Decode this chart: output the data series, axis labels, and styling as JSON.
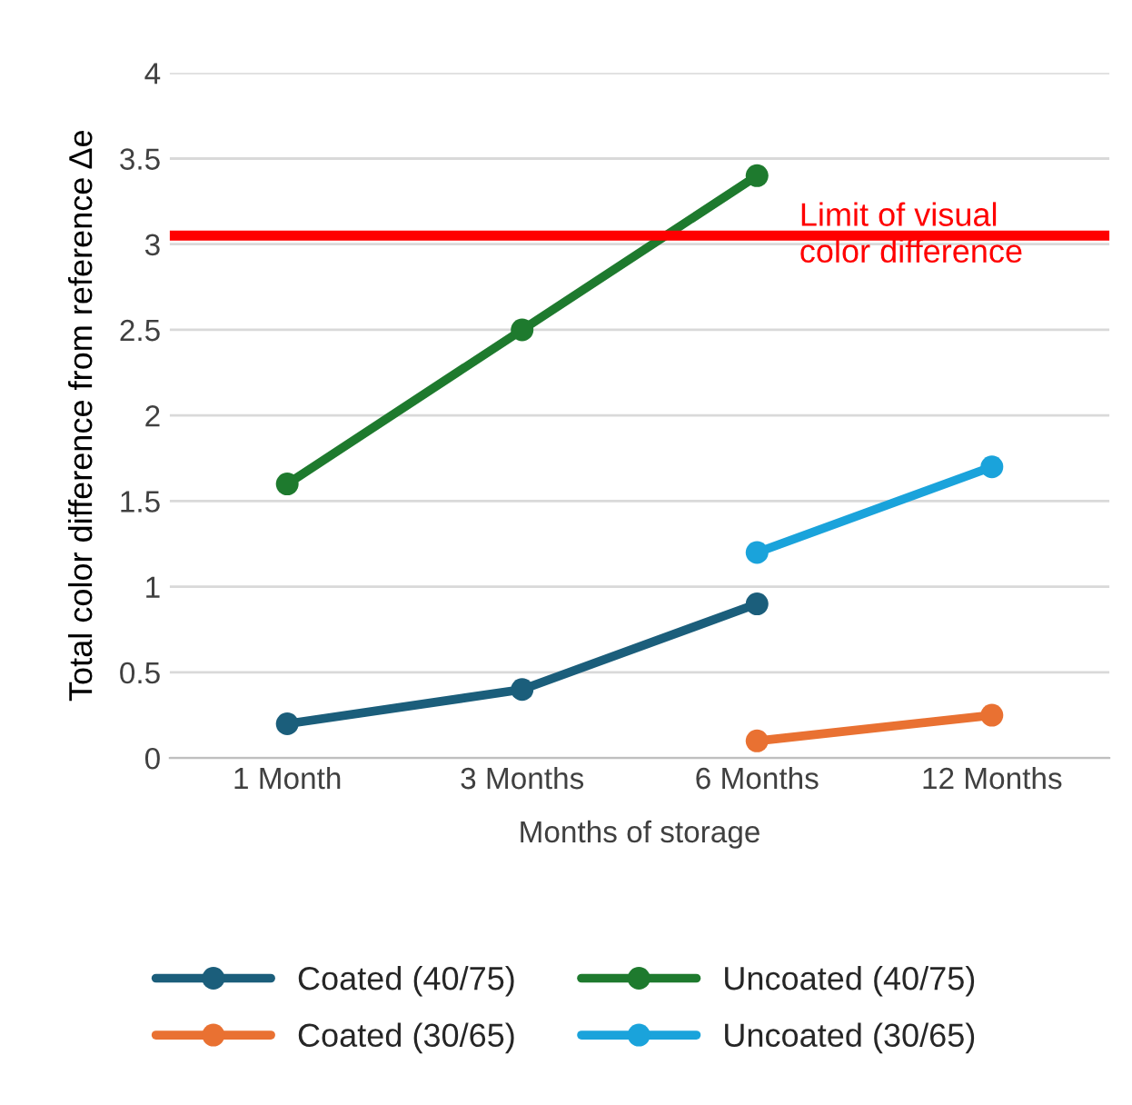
{
  "chart_data": {
    "type": "line",
    "xlabel": "Months of storage",
    "ylabel": "Total color difference from reference Δe",
    "categories": [
      "1 Month",
      "3 Months",
      "6 Months",
      "12 Months"
    ],
    "series": [
      {
        "name": "Coated (40/75)",
        "color": "#1b5e7b",
        "values": [
          0.2,
          0.4,
          0.9,
          null
        ]
      },
      {
        "name": "Coated (30/65)",
        "color": "#e97132",
        "values": [
          null,
          null,
          0.1,
          0.25
        ]
      },
      {
        "name": "Uncoated (40/75)",
        "color": "#1e7a2e",
        "values": [
          1.6,
          2.5,
          3.4,
          null
        ]
      },
      {
        "name": "Uncoated (30/65)",
        "color": "#1aa3db",
        "values": [
          null,
          null,
          1.2,
          1.7
        ]
      }
    ],
    "ylim": [
      0,
      4
    ],
    "yticks": [
      0,
      0.5,
      1,
      1.5,
      2,
      2.5,
      3,
      3.5,
      4
    ],
    "ref_lines": [
      {
        "axis": "y",
        "value": 3.05,
        "label": "Limit of visual\ncolor difference",
        "color": "#ff0000"
      }
    ],
    "grid": "y",
    "legend": "bottom",
    "marker": "circle",
    "line_style": "solid"
  }
}
